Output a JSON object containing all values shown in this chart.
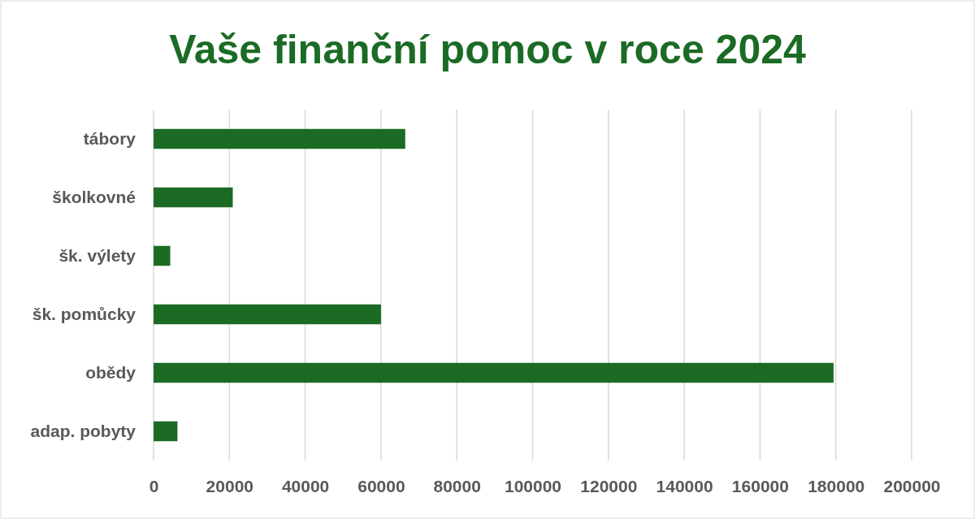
{
  "chart_data": {
    "type": "bar",
    "orientation": "horizontal",
    "title": "Vaše finanční pomoc v roce 2024",
    "categories": [
      "tábory",
      "školkovné",
      "šk. výlety",
      "šk. pomůcky",
      "obědy",
      "adap. pobyty"
    ],
    "values": [
      66400,
      20900,
      4400,
      60000,
      179400,
      6300
    ],
    "color": "#1b6b25",
    "xlim": [
      0,
      200000
    ],
    "xticks": [
      0,
      20000,
      40000,
      60000,
      80000,
      100000,
      120000,
      140000,
      160000,
      180000,
      200000
    ],
    "grid": "x"
  }
}
